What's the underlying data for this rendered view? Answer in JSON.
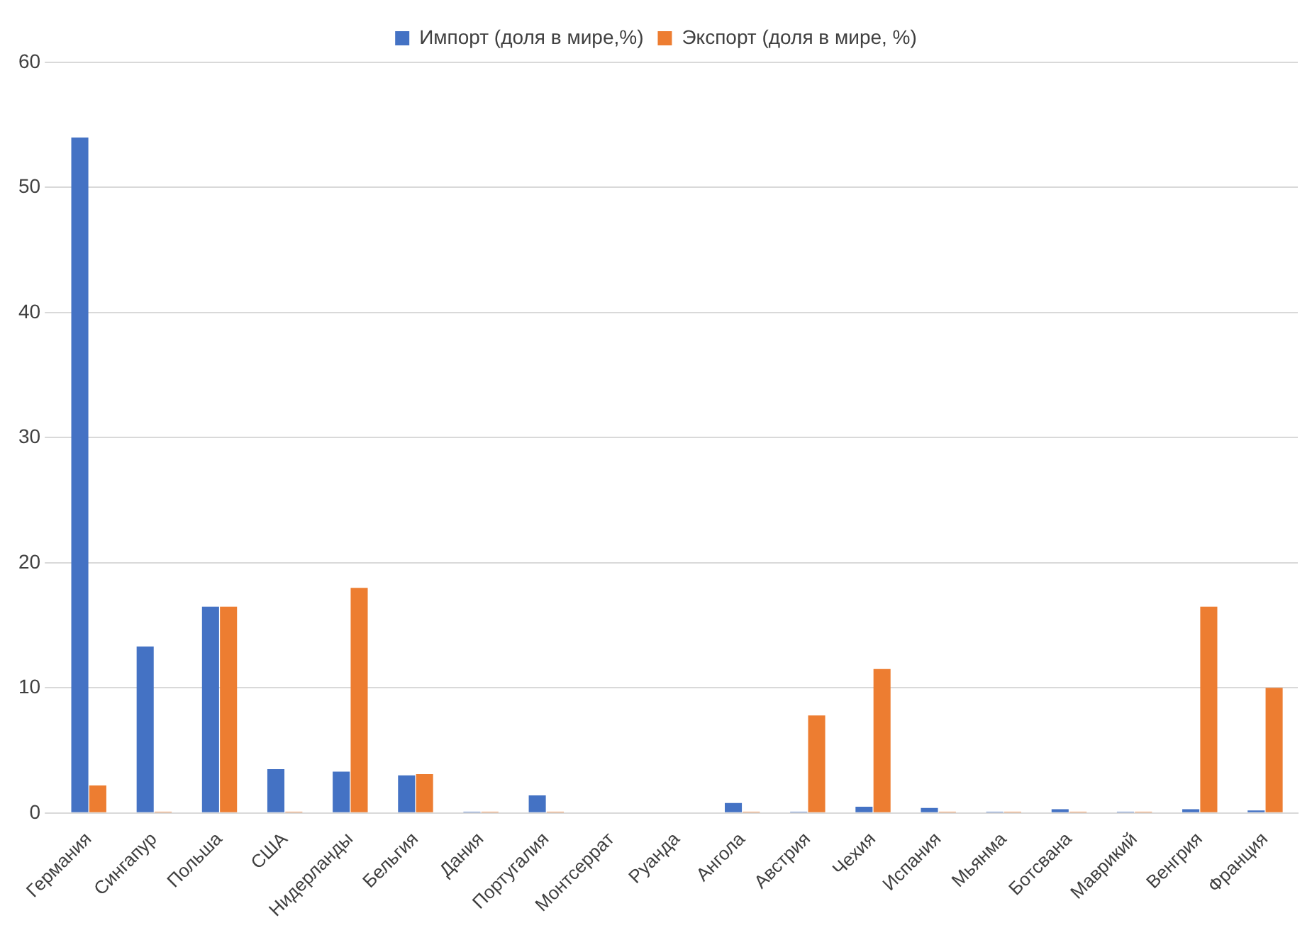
{
  "chart_data": {
    "type": "bar",
    "categories": [
      "Германия",
      "Сингапур",
      "Польша",
      "США",
      "Нидерланды",
      "Бельгия",
      "Дания",
      "Португалия",
      "Монтсеррат",
      "Руанда",
      "Ангола",
      "Австрия",
      "Чехия",
      "Испания",
      "Мьянма",
      "Ботсвана",
      "Маврикий",
      "Венгрия",
      "Франция"
    ],
    "series": [
      {
        "name": "Импорт (доля в мире,%)",
        "color": "#4472c4",
        "values": [
          54,
          13.3,
          16.5,
          3.5,
          3.3,
          3,
          0.1,
          1.4,
          0,
          0,
          0.8,
          0.1,
          0.5,
          0.4,
          0.1,
          0.3,
          0.1,
          0.3,
          0.2
        ]
      },
      {
        "name": "Экспорт (доля в мире, %)",
        "color": "#ed7d31",
        "values": [
          2.2,
          0.1,
          16.5,
          0.1,
          18,
          3.1,
          0.1,
          0.1,
          0,
          0,
          0.1,
          7.8,
          11.5,
          0.1,
          0.1,
          0.1,
          0.1,
          16.5,
          10
        ]
      }
    ],
    "ylim": [
      0,
      60
    ],
    "yticks": [
      0,
      10,
      20,
      30,
      40,
      50,
      60
    ],
    "grid": "y",
    "legend": "top"
  }
}
